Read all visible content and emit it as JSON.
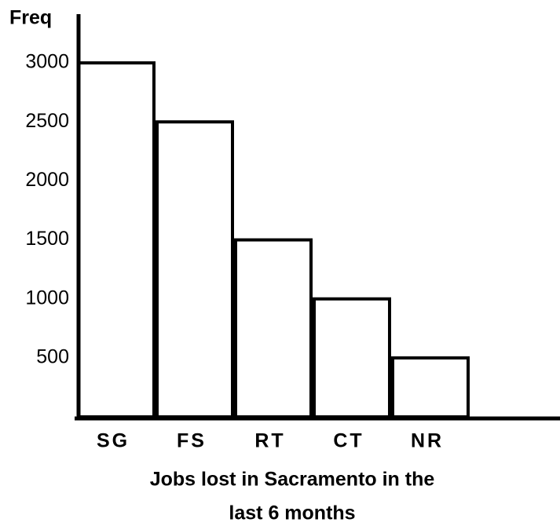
{
  "chart_data": {
    "type": "bar",
    "ylabel": "Freq",
    "xlabel": [
      "Jobs lost in Sacramento in the",
      "last 6 months"
    ],
    "categories": [
      "SG",
      "FS",
      "RT",
      "CT",
      "NR"
    ],
    "values": [
      3000,
      2500,
      1500,
      1000,
      500
    ],
    "color": "#ffffff",
    "ylim": [
      0,
      3400
    ],
    "yticks": [
      500,
      1000,
      1500,
      2000,
      2500,
      3000
    ],
    "grid": false
  }
}
